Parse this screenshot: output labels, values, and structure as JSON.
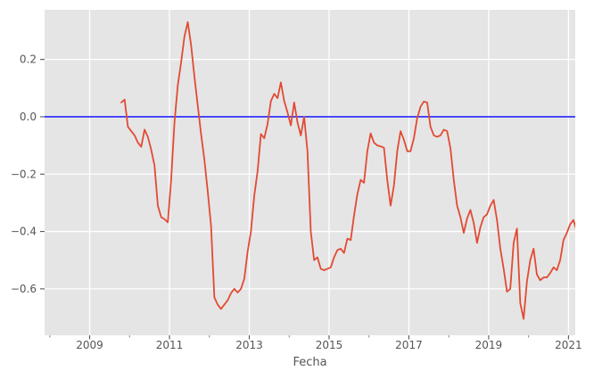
{
  "figure": {
    "background": "#ffffff",
    "plot_background": "#e5e5e5",
    "grid_color": "#ffffff",
    "tick_color": "#555555",
    "minor_tick_color": "#888888",
    "tick_label_color": "#555555",
    "axis_label_color": "#555555"
  },
  "chart_data": {
    "type": "line",
    "title": "",
    "xlabel": "Fecha",
    "ylabel": "",
    "grid": true,
    "legend": false,
    "x_axis": {
      "unit": "decimal_year",
      "xlim": [
        2007.87,
        2021.17
      ],
      "major_ticks": [
        2009,
        2011,
        2013,
        2015,
        2017,
        2019,
        2021
      ],
      "major_tick_labels": [
        "2009",
        "2011",
        "2013",
        "2015",
        "2017",
        "2019",
        "2021"
      ],
      "minor_ticks": [
        2008,
        2010,
        2012,
        2014,
        2016,
        2018,
        2020
      ]
    },
    "y_axis": {
      "ylim": [
        -0.762,
        0.373
      ],
      "major_ticks": [
        0.2,
        0.0,
        -0.2,
        -0.4,
        -0.6
      ],
      "major_tick_labels": [
        "0.2",
        "0.0",
        "−0.2",
        "−0.4",
        "−0.6"
      ]
    },
    "zero_line": {
      "y": 0.0,
      "color": "#0000ff",
      "width": 1.4
    },
    "series": [
      {
        "color": "#e24a33",
        "width": 1.8,
        "start": "2009-10",
        "frequency": "monthly",
        "values": [
          0.05,
          0.06,
          -0.035,
          -0.05,
          -0.065,
          -0.09,
          -0.105,
          -0.045,
          -0.07,
          -0.115,
          -0.17,
          -0.31,
          -0.35,
          -0.357,
          -0.368,
          -0.22,
          -0.02,
          0.11,
          0.19,
          0.28,
          0.33,
          0.25,
          0.14,
          0.04,
          -0.06,
          -0.15,
          -0.26,
          -0.38,
          -0.63,
          -0.655,
          -0.67,
          -0.655,
          -0.64,
          -0.615,
          -0.6,
          -0.613,
          -0.6,
          -0.565,
          -0.47,
          -0.4,
          -0.275,
          -0.19,
          -0.06,
          -0.075,
          -0.025,
          0.055,
          0.08,
          0.065,
          0.12,
          0.055,
          0.015,
          -0.03,
          0.05,
          -0.02,
          -0.065,
          0.0,
          -0.12,
          -0.4,
          -0.5,
          -0.49,
          -0.53,
          -0.535,
          -0.53,
          -0.525,
          -0.49,
          -0.465,
          -0.46,
          -0.475,
          -0.425,
          -0.43,
          -0.345,
          -0.27,
          -0.22,
          -0.23,
          -0.12,
          -0.058,
          -0.09,
          -0.1,
          -0.103,
          -0.108,
          -0.22,
          -0.31,
          -0.24,
          -0.12,
          -0.05,
          -0.08,
          -0.12,
          -0.12,
          -0.075,
          -0.005,
          0.035,
          0.053,
          0.05,
          -0.035,
          -0.065,
          -0.07,
          -0.065,
          -0.045,
          -0.05,
          -0.11,
          -0.22,
          -0.31,
          -0.35,
          -0.405,
          -0.355,
          -0.325,
          -0.37,
          -0.44,
          -0.385,
          -0.35,
          -0.34,
          -0.31,
          -0.29,
          -0.36,
          -0.46,
          -0.53,
          -0.61,
          -0.6,
          -0.44,
          -0.39,
          -0.65,
          -0.705,
          -0.575,
          -0.5,
          -0.46,
          -0.55,
          -0.57,
          -0.56,
          -0.56,
          -0.545,
          -0.525,
          -0.535,
          -0.5,
          -0.43,
          -0.405,
          -0.375,
          -0.36,
          -0.4
        ]
      }
    ]
  }
}
